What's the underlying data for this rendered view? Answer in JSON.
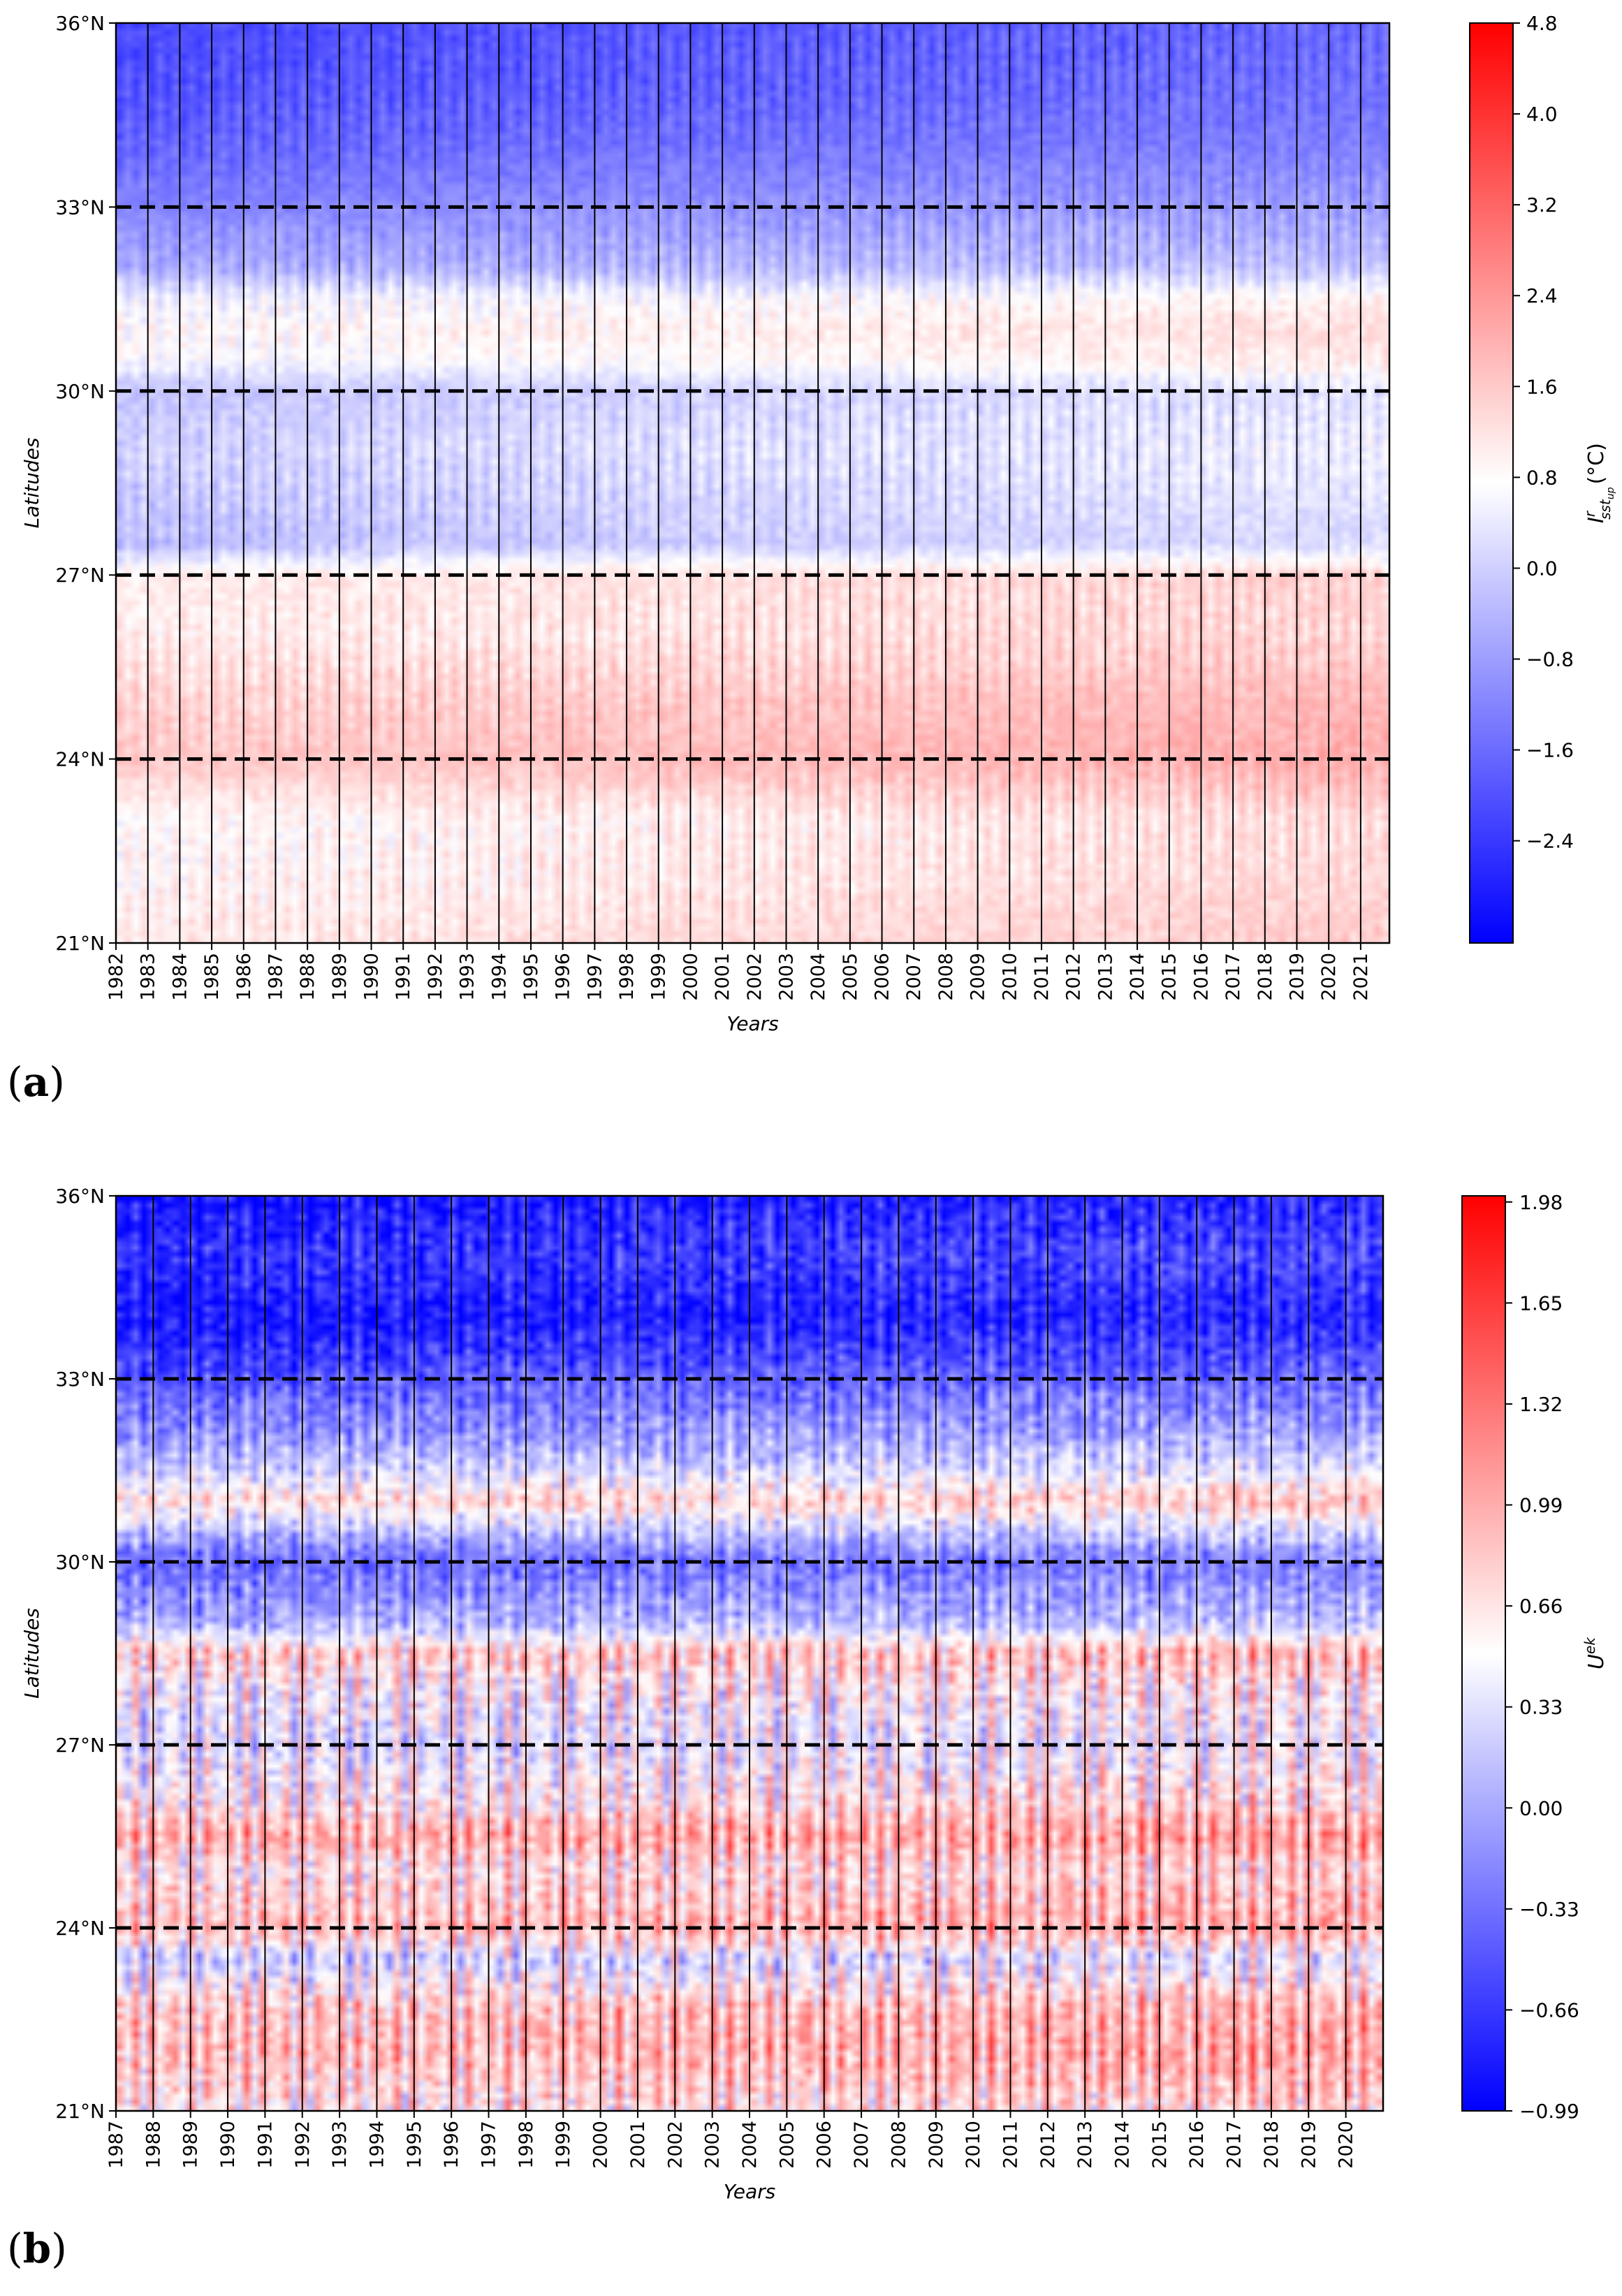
{
  "chart_data": [
    {
      "panel": "(a)",
      "type": "heatmap",
      "xlabel": "Years",
      "ylabel": "Latitudes",
      "colorbar_label": "I^r_sst_up (°C)",
      "colorbar_label_parts": {
        "base": "I",
        "sup": "r",
        "sub": "sst",
        "subsub": "up",
        "unit": "(°C)"
      },
      "vmin": -3.3,
      "vmax": 4.8,
      "colorbar_ticks": [
        4.8,
        4.0,
        3.2,
        2.4,
        1.6,
        0.8,
        0.0,
        -0.8,
        -1.6,
        -2.4
      ],
      "colorbar_tick_labels": [
        "4.8",
        "4.0",
        "3.2",
        "2.4",
        "1.6",
        "0.8",
        "0.0",
        "−0.8",
        "−1.6",
        "−2.4"
      ],
      "ylim": [
        21,
        36
      ],
      "y_ticks": [
        36,
        33,
        30,
        27,
        24,
        21
      ],
      "y_tick_labels": [
        "36°N",
        "33°N",
        "30°N",
        "27°N",
        "24°N",
        "21°N"
      ],
      "dashed_lat_lines": [
        33,
        30,
        27,
        24
      ],
      "xlim": [
        1982,
        2021.9
      ],
      "x_ticks": [
        1982,
        1983,
        1984,
        1985,
        1986,
        1987,
        1988,
        1989,
        1990,
        1991,
        1992,
        1993,
        1994,
        1995,
        1996,
        1997,
        1998,
        1999,
        2000,
        2001,
        2002,
        2003,
        2004,
        2005,
        2006,
        2007,
        2008,
        2009,
        2010,
        2011,
        2012,
        2013,
        2014,
        2015,
        2016,
        2017,
        2018,
        2019,
        2020,
        2021
      ],
      "x_tick_labels": [
        "1982",
        "1983",
        "1984",
        "1985",
        "1986",
        "1987",
        "1988",
        "1989",
        "1990",
        "1991",
        "1992",
        "1993",
        "1994",
        "1995",
        "1996",
        "1997",
        "1998",
        "1999",
        "2000",
        "2001",
        "2002",
        "2003",
        "2004",
        "2005",
        "2006",
        "2007",
        "2008",
        "2009",
        "2010",
        "2011",
        "2012",
        "2013",
        "2014",
        "2015",
        "2016",
        "2017",
        "2018",
        "2019",
        "2020",
        "2021"
      ],
      "latitude_profile_lats": [
        21,
        22,
        23,
        24,
        25,
        26,
        27,
        27.5,
        28,
        29,
        30,
        30.5,
        31,
        31.5,
        32,
        33,
        34,
        35,
        36
      ],
      "latitude_profile_values": [
        1.1,
        0.9,
        0.8,
        1.6,
        1.4,
        1.0,
        1.0,
        -0.3,
        -0.2,
        0.0,
        -0.2,
        0.6,
        0.8,
        0.5,
        -0.6,
        -1.2,
        -1.7,
        -2.0,
        -2.1
      ],
      "trend_per_decade": 0.12
    },
    {
      "panel": "(b)",
      "type": "heatmap",
      "xlabel": "Years",
      "ylabel": "Latitudes",
      "colorbar_label": "U^ek",
      "colorbar_label_parts": {
        "base": "U",
        "sup": "ek"
      },
      "vmin": -0.99,
      "vmax": 2.0,
      "colorbar_ticks": [
        1.98,
        1.65,
        1.32,
        0.99,
        0.66,
        0.33,
        0.0,
        -0.33,
        -0.66,
        -0.99
      ],
      "colorbar_tick_labels": [
        "1.98",
        "1.65",
        "1.32",
        "0.99",
        "0.66",
        "0.33",
        "0.00",
        "−0.33",
        "−0.66",
        "−0.99"
      ],
      "ylim": [
        21,
        36
      ],
      "y_ticks": [
        36,
        33,
        30,
        27,
        24,
        21
      ],
      "y_tick_labels": [
        "36°N",
        "33°N",
        "30°N",
        "27°N",
        "24°N",
        "21°N"
      ],
      "dashed_lat_lines": [
        33,
        30,
        27,
        24
      ],
      "xlim": [
        1987,
        2021
      ],
      "x_ticks": [
        1987,
        1988,
        1989,
        1990,
        1991,
        1992,
        1993,
        1994,
        1995,
        1996,
        1997,
        1998,
        1999,
        2000,
        2001,
        2002,
        2003,
        2004,
        2005,
        2006,
        2007,
        2008,
        2009,
        2010,
        2011,
        2012,
        2013,
        2014,
        2015,
        2016,
        2017,
        2018,
        2019,
        2020
      ],
      "x_tick_labels": [
        "1987",
        "1988",
        "1989",
        "1990",
        "1991",
        "1992",
        "1993",
        "1994",
        "1995",
        "1996",
        "1997",
        "1998",
        "1999",
        "2000",
        "2001",
        "2002",
        "2003",
        "2004",
        "2005",
        "2006",
        "2007",
        "2008",
        "2009",
        "2010",
        "2011",
        "2012",
        "2013",
        "2014",
        "2015",
        "2016",
        "2017",
        "2018",
        "2019",
        "2020"
      ],
      "latitude_profile_lats": [
        21,
        22,
        22.7,
        23.5,
        24,
        25,
        25.5,
        26,
        27,
        28,
        28.5,
        29,
        30,
        30.5,
        31,
        31.5,
        32,
        33,
        34,
        35,
        36
      ],
      "latitude_profile_values": [
        0.6,
        0.9,
        0.8,
        0.2,
        0.9,
        0.6,
        1.0,
        0.6,
        0.3,
        0.5,
        0.8,
        0.0,
        -0.4,
        0.1,
        0.7,
        0.2,
        -0.1,
        -0.5,
        -0.9,
        -0.7,
        -0.9
      ],
      "trend_per_decade": 0.05
    }
  ],
  "labels": {
    "a": "(a)",
    "b": "(b)"
  }
}
